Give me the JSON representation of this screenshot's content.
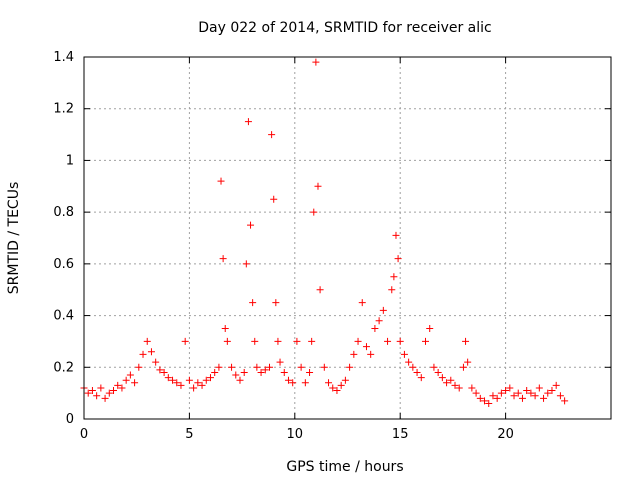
{
  "chart_data": {
    "type": "scatter",
    "title": "Day 022 of 2014, SRMTID for receiver alic",
    "xlabel": "GPS time / hours",
    "ylabel": "SRMTID / TECUs",
    "xlim": [
      0,
      25
    ],
    "ylim": [
      0,
      1.4
    ],
    "xticks": [
      "0",
      "5",
      "10",
      "15",
      "20"
    ],
    "yticks": [
      "0",
      "0.2",
      "0.4",
      "0.6",
      "0.8",
      "1",
      "1.2",
      "1.4"
    ],
    "grid": true,
    "marker": "+",
    "color": "#ff0000",
    "series": [
      {
        "name": "SRMTID",
        "x": [
          0.0,
          0.2,
          0.4,
          0.6,
          0.8,
          1.0,
          1.2,
          1.4,
          1.6,
          1.8,
          2.0,
          2.2,
          2.4,
          2.6,
          2.8,
          3.0,
          3.2,
          3.4,
          3.6,
          3.8,
          4.0,
          4.2,
          4.4,
          4.6,
          4.8,
          5.0,
          5.2,
          5.4,
          5.6,
          5.8,
          6.0,
          6.2,
          6.4,
          6.5,
          6.6,
          6.7,
          6.8,
          7.0,
          7.2,
          7.4,
          7.6,
          7.7,
          7.8,
          7.9,
          8.0,
          8.1,
          8.2,
          8.4,
          8.6,
          8.8,
          8.9,
          9.0,
          9.1,
          9.2,
          9.3,
          9.5,
          9.7,
          9.9,
          10.1,
          10.3,
          10.5,
          10.7,
          10.8,
          10.9,
          11.0,
          11.1,
          11.2,
          11.4,
          11.6,
          11.8,
          12.0,
          12.2,
          12.4,
          12.6,
          12.8,
          13.0,
          13.2,
          13.4,
          13.6,
          13.8,
          14.0,
          14.2,
          14.4,
          14.6,
          14.7,
          14.8,
          14.9,
          15.0,
          15.2,
          15.4,
          15.6,
          15.8,
          16.0,
          16.2,
          16.4,
          16.6,
          16.8,
          17.0,
          17.2,
          17.4,
          17.6,
          17.8,
          18.0,
          18.1,
          18.2,
          18.4,
          18.6,
          18.8,
          19.0,
          19.2,
          19.4,
          19.6,
          19.8,
          20.0,
          20.2,
          20.4,
          20.6,
          20.8,
          21.0,
          21.2,
          21.4,
          21.6,
          21.8,
          22.0,
          22.2,
          22.4,
          22.6,
          22.8
        ],
        "y": [
          0.12,
          0.1,
          0.11,
          0.09,
          0.12,
          0.08,
          0.1,
          0.11,
          0.13,
          0.12,
          0.15,
          0.17,
          0.14,
          0.2,
          0.25,
          0.3,
          0.26,
          0.22,
          0.19,
          0.18,
          0.16,
          0.15,
          0.14,
          0.13,
          0.3,
          0.15,
          0.12,
          0.14,
          0.13,
          0.15,
          0.16,
          0.18,
          0.2,
          0.92,
          0.62,
          0.35,
          0.3,
          0.2,
          0.17,
          0.15,
          0.18,
          0.6,
          1.15,
          0.75,
          0.45,
          0.3,
          0.2,
          0.18,
          0.19,
          0.2,
          1.1,
          0.85,
          0.45,
          0.3,
          0.22,
          0.18,
          0.15,
          0.14,
          0.3,
          0.2,
          0.14,
          0.18,
          0.3,
          0.8,
          1.38,
          0.9,
          0.5,
          0.2,
          0.14,
          0.12,
          0.11,
          0.13,
          0.15,
          0.2,
          0.25,
          0.3,
          0.45,
          0.28,
          0.25,
          0.35,
          0.38,
          0.42,
          0.3,
          0.5,
          0.55,
          0.71,
          0.62,
          0.3,
          0.25,
          0.22,
          0.2,
          0.18,
          0.16,
          0.3,
          0.35,
          0.2,
          0.18,
          0.16,
          0.14,
          0.15,
          0.13,
          0.12,
          0.2,
          0.3,
          0.22,
          0.12,
          0.1,
          0.08,
          0.07,
          0.06,
          0.09,
          0.08,
          0.1,
          0.11,
          0.12,
          0.09,
          0.1,
          0.08,
          0.11,
          0.1,
          0.09,
          0.12,
          0.08,
          0.1,
          0.11,
          0.13,
          0.09,
          0.07
        ]
      }
    ]
  }
}
